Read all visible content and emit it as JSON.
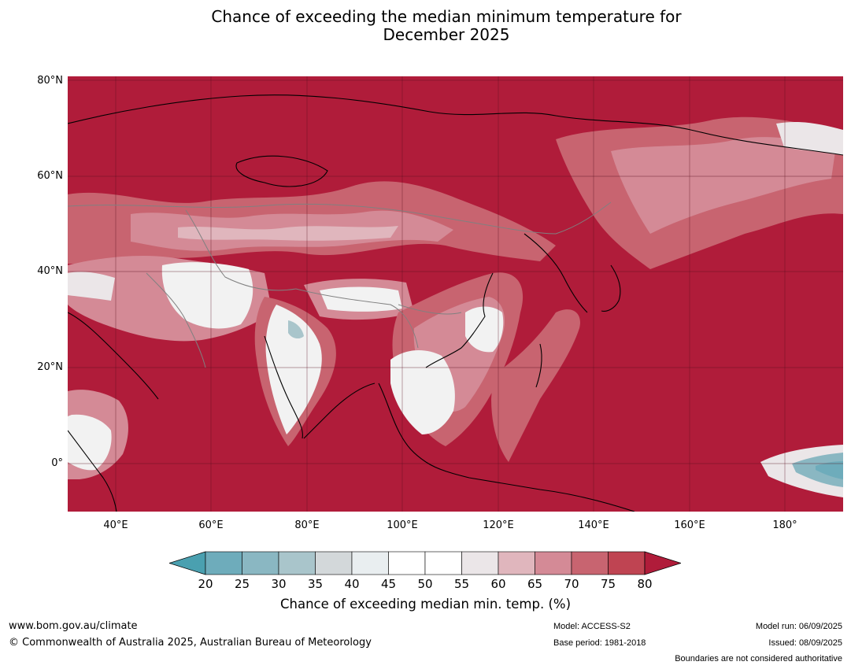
{
  "title_line1": "Chance of exceeding the median minimum temperature for",
  "title_line2": "December 2025",
  "latitude_labels": [
    "80°N",
    "60°N",
    "40°N",
    "20°N",
    "0°"
  ],
  "longitude_labels": [
    "40°E",
    "60°E",
    "80°E",
    "100°E",
    "120°E",
    "140°E",
    "160°E",
    "180°"
  ],
  "colorbar": {
    "ticks": [
      "20",
      "25",
      "30",
      "35",
      "40",
      "45",
      "50",
      "55",
      "60",
      "65",
      "70",
      "75",
      "80"
    ],
    "colors": [
      "#4aa0b0",
      "#6eacbb",
      "#8ab7c2",
      "#a9c5cb",
      "#d3d8da",
      "#e9eef0",
      "#ffffff",
      "#ffffff",
      "#ebe6e8",
      "#e0b6bd",
      "#d48a96",
      "#c86470",
      "#bf4452",
      "#b01c3a"
    ],
    "label": "Chance of exceeding median min. temp. (%)"
  },
  "map_colors": {
    "dominant": "#b01c3a",
    "high": "#c86470",
    "mid": "#d48a96",
    "near_median": "#f2f2f2",
    "below": "#8ab7c2",
    "coastline": "#000000",
    "border": "#808080"
  },
  "footer": {
    "website": "www.bom.gov.au/climate",
    "copyright": "© Commonwealth of Australia 2025, Australian Bureau of Meteorology",
    "model": "Model: ACCESS-S2",
    "base_period": "Base period: 1981-2018",
    "model_run": "Model run: 06/09/2025",
    "issued": "Issued: 08/09/2025",
    "disclaimer": "Boundaries are not considered authoritative"
  }
}
